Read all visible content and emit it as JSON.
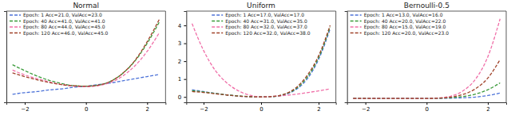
{
  "chart_data": [
    {
      "type": "line",
      "title": "Normal",
      "x": [
        -2.4,
        -2.0,
        -1.6,
        -1.2,
        -0.8,
        -0.4,
        0.0,
        0.4,
        0.8,
        1.2,
        1.6,
        2.0,
        2.4
      ],
      "series": [
        {
          "name": "Epoch: 1 Acc=21.0, ValAcc=23.0",
          "color": "#4c72d8",
          "line_style": "dashed",
          "values": [
            -0.015,
            -0.012,
            -0.01,
            -0.007,
            -0.005,
            -0.002,
            0,
            0.003,
            0.006,
            0.01,
            0.014,
            0.018,
            0.022
          ]
        },
        {
          "name": "Epoch: 40 Acc=41.0, ValAcc=41.0",
          "color": "#3a9a3a",
          "line_style": "dashed",
          "values": [
            0.04,
            0.029,
            0.019,
            0.011,
            0.005,
            0.001,
            0,
            0.002,
            0.009,
            0.024,
            0.047,
            0.08,
            0.12
          ]
        },
        {
          "name": "Epoch: 80 Acc=44.0, ValAcc=45.0",
          "color": "#f06fa8",
          "line_style": "dashed",
          "values": [
            0.03,
            0.021,
            0.014,
            0.008,
            0.003,
            0,
            -0.001,
            0.001,
            0.007,
            0.019,
            0.038,
            0.065,
            0.1
          ]
        },
        {
          "name": "Epoch: 120 Acc=46.0, ValAcc=45.0",
          "color": "#a0422a",
          "line_style": "dashed",
          "values": [
            0.025,
            0.018,
            0.012,
            0.007,
            0.003,
            0.001,
            0,
            0.002,
            0.009,
            0.024,
            0.048,
            0.083,
            0.125
          ]
        }
      ],
      "xlim": [
        -2.6,
        2.6
      ],
      "xticks": [
        {
          "value": -2,
          "label": "−2"
        },
        0,
        2
      ],
      "ylim": [
        -0.03,
        0.14
      ],
      "tick_labels": "x",
      "legend": "upper left"
    },
    {
      "type": "line",
      "title": "Uniform",
      "x": [
        -2.4,
        -2.0,
        -1.6,
        -1.2,
        -0.8,
        -0.4,
        0.0,
        0.4,
        0.8,
        1.2,
        1.6,
        2.0,
        2.4
      ],
      "series": [
        {
          "name": "Epoch: 1 Acc=17.0, ValAcc=17.0",
          "color": "#4c72d8",
          "line_style": "dashed",
          "values": [
            0.4,
            0.3,
            0.2,
            0.12,
            0.05,
            0.01,
            0,
            0.02,
            0.12,
            0.4,
            1.0,
            2.1,
            3.8
          ]
        },
        {
          "name": "Epoch: 40 Acc=31.0, ValAcc=35.0",
          "color": "#3a9a3a",
          "line_style": "dashed",
          "values": [
            0.35,
            0.28,
            0.2,
            0.12,
            0.06,
            0.02,
            0,
            0.02,
            0.14,
            0.45,
            1.1,
            2.2,
            3.9
          ]
        },
        {
          "name": "Epoch: 80 Acc=32.0, ValAcc=37.0",
          "color": "#f06fa8",
          "line_style": "dashed",
          "values": [
            4.1,
            2.6,
            1.5,
            0.8,
            0.35,
            0.1,
            0,
            0.03,
            0.08,
            0.15,
            0.24,
            0.34,
            0.45
          ]
        },
        {
          "name": "Epoch: 120 Acc=32.0, ValAcc=38.0",
          "color": "#a0422a",
          "line_style": "dashed",
          "values": [
            0.3,
            0.25,
            0.18,
            0.11,
            0.05,
            0.01,
            0,
            0.03,
            0.15,
            0.5,
            1.2,
            2.3,
            4.0
          ]
        }
      ],
      "xlim": [
        -2.6,
        2.6
      ],
      "xticks": [
        {
          "value": -2,
          "label": "−2"
        },
        0,
        2
      ],
      "ylim": [
        -0.3,
        4.8
      ],
      "yticks": [
        0,
        1,
        2,
        3,
        4
      ],
      "legend": "upper center"
    },
    {
      "type": "line",
      "title": "Bernoulli-0.5",
      "x": [
        -2.4,
        -2.0,
        -1.6,
        -1.2,
        -0.8,
        -0.4,
        0.0,
        0.4,
        0.8,
        1.2,
        1.6,
        2.0,
        2.4
      ],
      "series": [
        {
          "name": "Epoch: 1 Acc=13.0, ValAcc=16.0",
          "color": "#4c72d8",
          "line_style": "dashed",
          "values": [
            0,
            0,
            0,
            0,
            0,
            0,
            0,
            0.01,
            0.03,
            0.07,
            0.14,
            0.3,
            0.55
          ]
        },
        {
          "name": "Epoch: 40 Acc=20.0, ValAcc=22.0",
          "color": "#3a9a3a",
          "line_style": "dashed",
          "values": [
            0.02,
            0.01,
            0,
            0,
            0,
            0,
            0,
            0.02,
            0.08,
            0.2,
            0.45,
            0.9,
            1.6
          ]
        },
        {
          "name": "Epoch: 80 Acc=15.0, ValAcc=19.0",
          "color": "#f06fa8",
          "line_style": "dashed",
          "values": [
            0,
            0,
            0,
            0,
            0,
            0,
            0,
            0.05,
            0.25,
            0.8,
            2.0,
            4.3,
            8.2
          ]
        },
        {
          "name": "Epoch: 120 Acc=20.0, ValAcc=23.0",
          "color": "#a0422a",
          "line_style": "dashed",
          "values": [
            0,
            0,
            0,
            0,
            0,
            0,
            0,
            0.03,
            0.14,
            0.42,
            1.0,
            2.1,
            4.0
          ]
        }
      ],
      "xlim": [
        -2.6,
        2.6
      ],
      "xticks": [
        {
          "value": -2,
          "label": "−2"
        },
        0,
        2
      ],
      "ylim": [
        -0.4,
        9.0
      ],
      "tick_labels": "x",
      "legend": "upper left"
    }
  ]
}
